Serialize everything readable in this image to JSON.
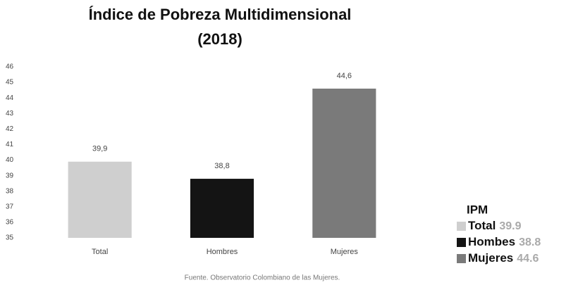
{
  "chart_data": {
    "type": "bar",
    "title": [
      "Índice de Pobreza Multidimensional",
      "(2018)"
    ],
    "categories": [
      "Total",
      "Hombres",
      "Mujeres"
    ],
    "values": [
      39.9,
      38.8,
      44.6
    ],
    "value_labels": [
      "39,9",
      "38,8",
      "44,6"
    ],
    "colors": [
      "#cfcfcf",
      "#141414",
      "#7a7a7a"
    ],
    "ylim": [
      35,
      46
    ],
    "yticks": [
      35,
      36,
      37,
      38,
      39,
      40,
      41,
      42,
      43,
      44,
      45,
      46
    ],
    "grid": false,
    "legend": {
      "title": "IPM",
      "entries": [
        "Total",
        "Hombes",
        "Mujeres"
      ],
      "position": "right"
    },
    "source": "Fuente. Observatorio Colombiano de las Mujeres."
  }
}
